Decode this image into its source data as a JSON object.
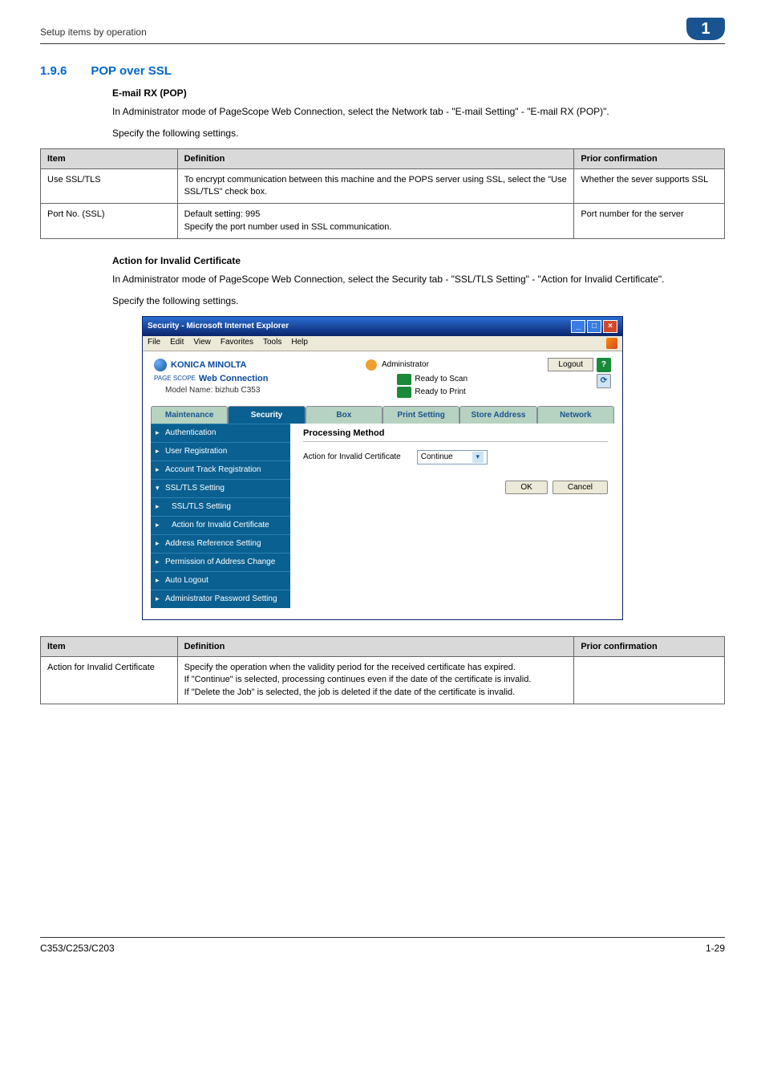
{
  "header": {
    "breadcrumb": "Setup items by operation",
    "badge": "1"
  },
  "section": {
    "number": "1.9.6",
    "title": "POP over SSL"
  },
  "block1": {
    "heading": "E-mail RX (POP)",
    "p1": "In Administrator mode of PageScope Web Connection, select the Network tab - \"E-mail Setting\" - \"E-mail RX (POP)\".",
    "p2": "Specify the following settings."
  },
  "table1": {
    "headers": {
      "c1": "Item",
      "c2": "Definition",
      "c3": "Prior confirmation"
    },
    "rows": [
      {
        "c1": "Use SSL/TLS",
        "c2": "To encrypt communication between this machine and the POPS server using SSL, select the \"Use SSL/TLS\" check box.",
        "c3": "Whether the sever supports SSL"
      },
      {
        "c1": "Port No. (SSL)",
        "c2": "Default setting: 995\nSpecify the port number used in SSL communication.",
        "c3": "Port number for the server"
      }
    ]
  },
  "block2": {
    "heading": "Action for Invalid Certificate",
    "p1": "In Administrator mode of PageScope Web Connection, select the Security tab - \"SSL/TLS Setting\" - \"Action for Invalid Certificate\".",
    "p2": "Specify the following settings."
  },
  "screenshot": {
    "title": "Security - Microsoft Internet Explorer",
    "menus": [
      "File",
      "Edit",
      "View",
      "Favorites",
      "Tools",
      "Help"
    ],
    "logo": "KONICA MINOLTA",
    "admin_label": "Administrator",
    "logout": "Logout",
    "brand_prefix": "PAGE SCOPE",
    "brand": "Web Connection",
    "model": "Model Name: bizhub C353",
    "status1": "Ready to Scan",
    "status2": "Ready to Print",
    "tabs": [
      "Maintenance",
      "Security",
      "Box",
      "Print Setting",
      "Store Address",
      "Network"
    ],
    "active_tab": 1,
    "sidebar": [
      {
        "label": "Authentication"
      },
      {
        "label": "User Registration"
      },
      {
        "label": "Account Track Registration"
      },
      {
        "label": "SSL/TLS Setting",
        "expanded": true,
        "children": [
          {
            "label": "SSL/TLS Setting"
          },
          {
            "label": "Action for Invalid Certificate",
            "selected": true
          }
        ]
      },
      {
        "label": "Address Reference Setting"
      },
      {
        "label": "Permission of Address Change"
      },
      {
        "label": "Auto Logout"
      },
      {
        "label": "Administrator Password Setting"
      }
    ],
    "content_head": "Processing Method",
    "field_label": "Action for Invalid Certificate",
    "field_value": "Continue",
    "ok": "OK",
    "cancel": "Cancel"
  },
  "table2": {
    "headers": {
      "c1": "Item",
      "c2": "Definition",
      "c3": "Prior confirmation"
    },
    "rows": [
      {
        "c1": "Action for Invalid Certificate",
        "c2": "Specify the operation when the validity period for the received certificate has expired.\nIf \"Continue\" is selected, processing continues even if the date of the certificate is invalid.\nIf \"Delete the Job\" is selected, the job is deleted if the date of the certificate is invalid.",
        "c3": ""
      }
    ]
  },
  "footer": {
    "left": "C353/C253/C203",
    "right": "1-29"
  }
}
